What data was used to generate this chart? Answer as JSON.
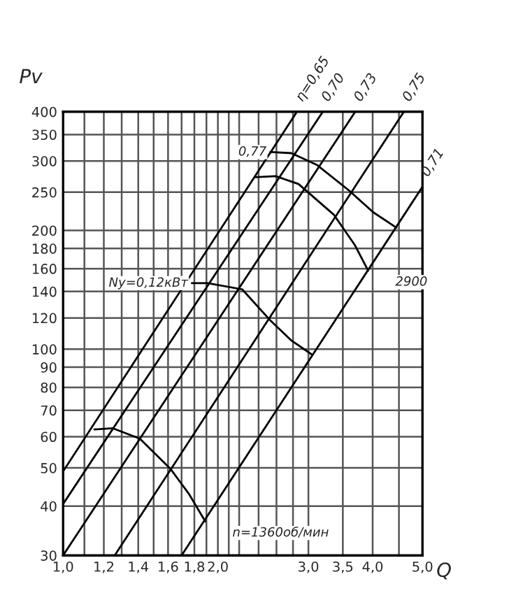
{
  "chart_data": {
    "type": "line",
    "xlabel": "Q",
    "ylabel": "Pv",
    "log": "xy",
    "grid": true,
    "marker": "none",
    "line_style": "solid",
    "xlim": [
      1.0,
      5.0
    ],
    "ylim": [
      30,
      400
    ],
    "xticks": [
      {
        "value": 1.0,
        "label": "1,0"
      },
      {
        "value": 1.1,
        "label": null
      },
      {
        "value": 1.2,
        "label": "1,2"
      },
      {
        "value": 1.3,
        "label": null
      },
      {
        "value": 1.4,
        "label": "1,4"
      },
      {
        "value": 1.5,
        "label": null
      },
      {
        "value": 1.6,
        "label": "1,6"
      },
      {
        "value": 1.7,
        "label": null
      },
      {
        "value": 1.8,
        "label": "1,8"
      },
      {
        "value": 1.9,
        "label": null
      },
      {
        "value": 2.0,
        "label": "2,0"
      },
      {
        "value": 2.1,
        "label": null
      },
      {
        "value": 2.2,
        "label": null
      },
      {
        "value": 2.4,
        "label": null
      },
      {
        "value": 2.6,
        "label": null
      },
      {
        "value": 2.8,
        "label": null
      },
      {
        "value": 3.0,
        "label": "3,0"
      },
      {
        "value": 3.5,
        "label": "3,5"
      },
      {
        "value": 4.0,
        "label": "4,0"
      },
      {
        "value": 4.5,
        "label": null
      },
      {
        "value": 5.0,
        "label": "5,0"
      }
    ],
    "yticks": [
      30,
      40,
      50,
      60,
      70,
      80,
      90,
      100,
      120,
      140,
      160,
      180,
      200,
      250,
      300,
      350,
      400
    ],
    "series": [
      {
        "color": "#000000",
        "x": [
          1.15,
          1.25,
          1.41,
          1.62,
          1.76,
          1.89
        ],
        "values": [
          62.6,
          63,
          59.3,
          49.6,
          42.8,
          36.6
        ]
      },
      {
        "color": "#000000",
        "x": [
          1.78,
          1.91,
          2.23,
          2.52,
          2.78,
          3.04
        ],
        "values": [
          147,
          147,
          141.8,
          118.9,
          105.2,
          97.1
        ]
      },
      {
        "color": "#000000",
        "x": [
          2.37,
          2.59,
          2.87,
          3.36,
          3.69,
          3.92
        ],
        "values": [
          273,
          274.6,
          262.2,
          219.4,
          184,
          158.3
        ]
      },
      {
        "color": "#000000",
        "x": [
          2.53,
          2.78,
          3.12,
          3.61,
          4.01,
          4.45
        ],
        "values": [
          316,
          314,
          292.9,
          251.6,
          222.4,
          203.2
        ]
      },
      {
        "name": "η=0,65",
        "color": "#000000",
        "x": [
          1.0,
          2.85
        ],
        "values": [
          49,
          400
        ]
      },
      {
        "name": "0,70",
        "color": "#000000",
        "x": [
          1.0,
          3.2
        ],
        "values": [
          40.5,
          400
        ]
      },
      {
        "name": "0,73",
        "color": "#000000",
        "x": [
          1.0,
          3.7
        ],
        "values": [
          30,
          400
        ]
      },
      {
        "name": "0,75",
        "color": "#000000",
        "x": [
          1.26,
          4.6
        ],
        "values": [
          30,
          400
        ]
      },
      {
        "name": "0,71",
        "color": "#000000",
        "x": [
          1.7,
          5.0
        ],
        "values": [
          30,
          258
        ]
      }
    ],
    "annotations": [
      {
        "text": "0,77",
        "x": 2.53,
        "y": 316
      },
      {
        "text": "Nу=0,12кВт",
        "x": 1.78,
        "y": 147
      },
      {
        "text": "2900",
        "x": 3.92,
        "y": 158.3
      },
      {
        "text": "n=1360об/мин",
        "x": 1.89,
        "y": 36.6
      }
    ]
  }
}
